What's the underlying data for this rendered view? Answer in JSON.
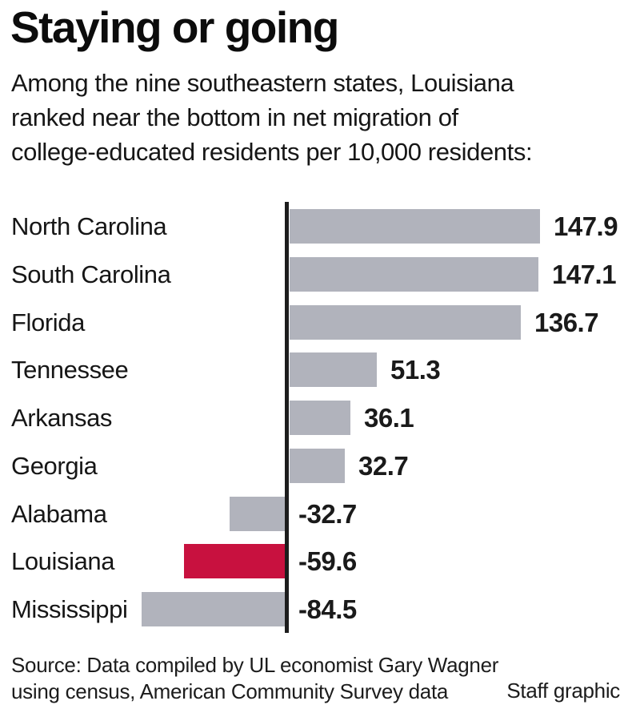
{
  "header": {
    "subtitle_lines": [
      "Among the nine southeastern states, Louisiana",
      "ranked near the bottom in net migration of",
      "college-educated residents per 10,000 residents:"
    ]
  },
  "chart_data": {
    "type": "bar",
    "orientation": "horizontal",
    "title": "Staying or going",
    "subtitle": "Among the nine southeastern states, Louisiana ranked near the bottom in net migration of college-educated residents per 10,000 residents:",
    "categories": [
      "North Carolina",
      "South Carolina",
      "Florida",
      "Tennessee",
      "Arkansas",
      "Georgia",
      "Alabama",
      "Louisiana",
      "Mississippi"
    ],
    "values": [
      147.9,
      147.1,
      136.7,
      51.3,
      36.1,
      32.7,
      -32.7,
      -59.6,
      -84.5
    ],
    "highlight_category": "Louisiana",
    "xlabel": "",
    "ylabel": "",
    "xlim": [
      -100,
      160
    ],
    "grid": false,
    "legend": "none",
    "zero_baseline_shown": true,
    "data_labels_shown": true,
    "colors": {
      "bar": "#b1b3bc",
      "highlight": "#c8113f",
      "axis": "#1d1d1d"
    },
    "rows": [
      {
        "state": "North Carolina",
        "value": 147.9,
        "value_label": "147.9",
        "highlight": false
      },
      {
        "state": "South Carolina",
        "value": 147.1,
        "value_label": "147.1",
        "highlight": false
      },
      {
        "state": "Florida",
        "value": 136.7,
        "value_label": "136.7",
        "highlight": false
      },
      {
        "state": "Tennessee",
        "value": 51.3,
        "value_label": "51.3",
        "highlight": false
      },
      {
        "state": "Arkansas",
        "value": 36.1,
        "value_label": "36.1",
        "highlight": false
      },
      {
        "state": "Georgia",
        "value": 32.7,
        "value_label": "32.7",
        "highlight": false
      },
      {
        "state": "Alabama",
        "value": -32.7,
        "value_label": "-32.7",
        "highlight": false
      },
      {
        "state": "Louisiana",
        "value": -59.6,
        "value_label": "-59.6",
        "highlight": true
      },
      {
        "state": "Mississippi",
        "value": -84.5,
        "value_label": "-84.5",
        "highlight": false
      }
    ]
  },
  "footer": {
    "source_lines": [
      "Source: Data compiled by UL economist Gary Wagner",
      "using census, American Community Survey data"
    ],
    "credit": "Staff graphic"
  }
}
